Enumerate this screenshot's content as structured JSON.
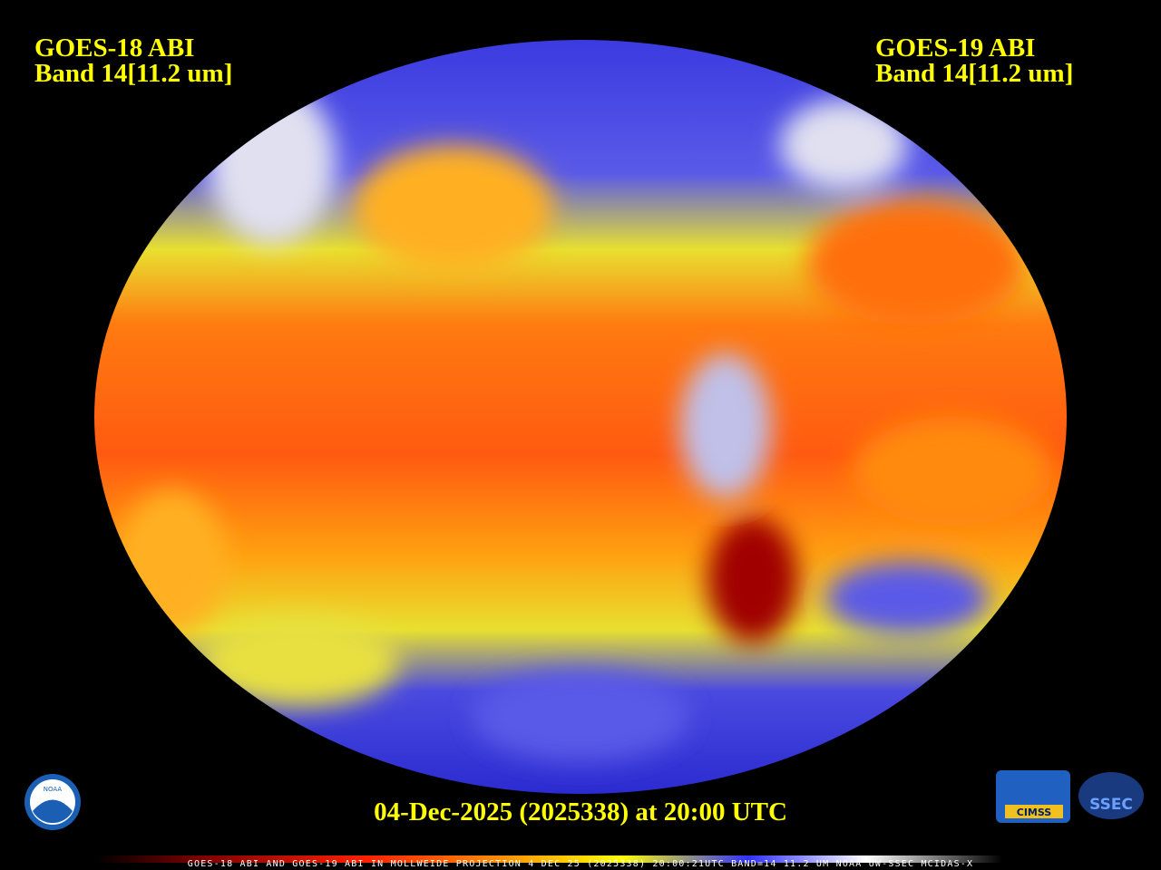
{
  "header": {
    "left_title": "GOES-18 ABI",
    "left_band": "Band 14[11.2 um]",
    "right_title": "GOES-19 ABI",
    "right_band": "Band 14[11.2 um]"
  },
  "timestamp": "04-Dec-2025 (2025338) at 20:00 UTC",
  "footer": "GOES-18 ABI AND GOES-19 ABI IN MOLLWEIDE PROJECTION 4 DEC 25 (2025338) 20:00:21UTC BAND=14 11.2 UM NOAA UW-SSEC MCIDAS-X",
  "logos": {
    "noaa": "NOAA",
    "cimss": "CIMSS",
    "ssec": "SSEC"
  }
}
